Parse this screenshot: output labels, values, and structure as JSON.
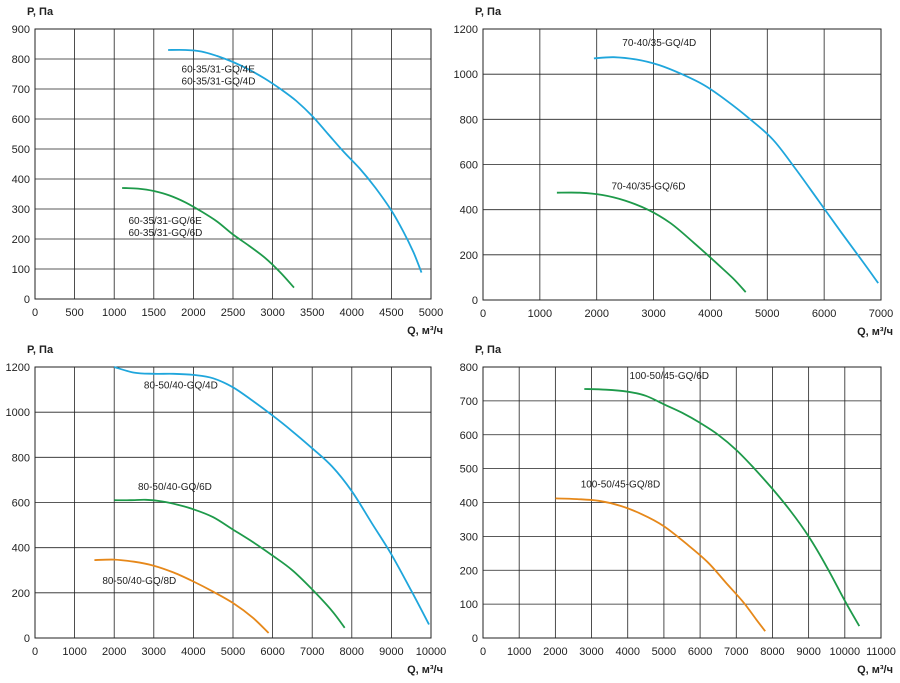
{
  "chart_data": [
    {
      "type": "line",
      "ylabel": "P, Па",
      "xlabel": "Q, м³/ч",
      "xlim": [
        0,
        5000
      ],
      "ylim": [
        0,
        900
      ],
      "xticks": [
        "0",
        "500",
        "1000",
        "1500",
        "2000",
        "2500",
        "3000",
        "3500",
        "4000",
        "4500",
        "5000"
      ],
      "yticks": [
        "0",
        "100",
        "200",
        "300",
        "400",
        "500",
        "600",
        "700",
        "800",
        "900"
      ],
      "series": [
        {
          "name": "60-35/31-GQ/4E\n60-35/31-GQ/4D",
          "color": "#1fa6dc",
          "x": [
            1680,
            1900,
            2100,
            2300,
            2500,
            2700,
            2900,
            3100,
            3300,
            3500,
            3700,
            3900,
            4100,
            4300,
            4500,
            4650,
            4780,
            4880
          ],
          "y": [
            830,
            830,
            825,
            810,
            790,
            765,
            735,
            700,
            660,
            610,
            550,
            490,
            435,
            370,
            295,
            225,
            155,
            88
          ]
        },
        {
          "name": "60-35/31-GQ/6E\n60-35/31-GQ/6D",
          "color": "#1e9a4a",
          "x": [
            1100,
            1300,
            1500,
            1700,
            1900,
            2100,
            2300,
            2500,
            2700,
            2900,
            3100,
            3270
          ],
          "y": [
            370,
            368,
            360,
            345,
            322,
            292,
            258,
            215,
            178,
            138,
            88,
            38
          ]
        }
      ]
    },
    {
      "type": "line",
      "ylabel": "P, Па",
      "xlabel": "Q, м³/ч",
      "xlim": [
        0,
        7000
      ],
      "ylim": [
        0,
        1200
      ],
      "xticks": [
        "0",
        "1000",
        "2000",
        "3000",
        "4000",
        "5000",
        "6000",
        "7000"
      ],
      "yticks": [
        "0",
        "200",
        "400",
        "600",
        "800",
        "1000",
        "1200"
      ],
      "series": [
        {
          "name": "70-40/35-GQ/4D",
          "color": "#1fa6dc",
          "x": [
            1950,
            2300,
            2700,
            3100,
            3500,
            3900,
            4300,
            4700,
            5100,
            5500,
            5900,
            6300,
            6650,
            6950
          ],
          "y": [
            1070,
            1075,
            1065,
            1040,
            1000,
            950,
            880,
            800,
            710,
            580,
            440,
            300,
            180,
            75
          ]
        },
        {
          "name": "70-40/35-GQ/6D",
          "color": "#1e9a4a",
          "x": [
            1300,
            1700,
            2100,
            2500,
            2900,
            3300,
            3700,
            4100,
            4400,
            4620
          ],
          "y": [
            475,
            475,
            465,
            440,
            400,
            340,
            255,
            165,
            95,
            35
          ]
        }
      ]
    },
    {
      "type": "line",
      "ylabel": "P, Па",
      "xlabel": "Q, м³/ч",
      "xlim": [
        0,
        10000
      ],
      "ylim": [
        0,
        1200
      ],
      "xticks": [
        "0",
        "1000",
        "2000",
        "3000",
        "4000",
        "5000",
        "6000",
        "7000",
        "8000",
        "9000",
        "10000"
      ],
      "yticks": [
        "0",
        "200",
        "400",
        "600",
        "800",
        "1000",
        "1200"
      ],
      "series": [
        {
          "name": "80-50/40-GQ/4D",
          "color": "#1fa6dc",
          "x": [
            2000,
            2500,
            3000,
            3500,
            4000,
            4500,
            5000,
            5500,
            6000,
            6500,
            7000,
            7500,
            8000,
            8500,
            9000,
            9500,
            9950
          ],
          "y": [
            1200,
            1175,
            1170,
            1170,
            1165,
            1150,
            1110,
            1050,
            985,
            915,
            840,
            760,
            650,
            510,
            370,
            210,
            60
          ]
        },
        {
          "name": "80-50/40-GQ/6D",
          "color": "#1e9a4a",
          "x": [
            2000,
            2400,
            2800,
            3200,
            3600,
            4000,
            4500,
            5000,
            5500,
            6000,
            6500,
            7000,
            7500,
            7820
          ],
          "y": [
            610,
            610,
            612,
            605,
            590,
            570,
            535,
            480,
            425,
            365,
            300,
            215,
            120,
            45
          ]
        },
        {
          "name": "80-50/40-GQ/8D",
          "color": "#e6881a",
          "x": [
            1500,
            2000,
            2500,
            3000,
            3500,
            4000,
            4500,
            5000,
            5500,
            5900
          ],
          "y": [
            345,
            347,
            338,
            320,
            290,
            250,
            205,
            155,
            90,
            22
          ]
        }
      ]
    },
    {
      "type": "line",
      "ylabel": "P, Па",
      "xlabel": "Q, м³/ч",
      "xlim": [
        0,
        11000
      ],
      "ylim": [
        0,
        800
      ],
      "xticks": [
        "0",
        "1000",
        "2000",
        "3000",
        "4000",
        "5000",
        "6000",
        "7000",
        "8000",
        "9000",
        "10000",
        "11000"
      ],
      "yticks": [
        "0",
        "100",
        "200",
        "300",
        "400",
        "500",
        "600",
        "700",
        "800"
      ],
      "series": [
        {
          "name": "100-50/45-GQ/6D",
          "color": "#1e9a4a",
          "x": [
            2800,
            3400,
            4000,
            4500,
            5000,
            5500,
            6000,
            6500,
            7000,
            7500,
            8000,
            8500,
            9000,
            9500,
            10000,
            10400
          ],
          "y": [
            735,
            733,
            727,
            715,
            690,
            665,
            635,
            600,
            555,
            500,
            440,
            375,
            300,
            210,
            110,
            35
          ]
        },
        {
          "name": "100-50/45-GQ/8D",
          "color": "#e6881a",
          "x": [
            2000,
            2600,
            3200,
            3800,
            4400,
            5000,
            5600,
            6200,
            6700,
            7200,
            7550,
            7800
          ],
          "y": [
            412,
            410,
            405,
            390,
            365,
            330,
            280,
            225,
            165,
            105,
            55,
            20
          ]
        }
      ]
    }
  ]
}
